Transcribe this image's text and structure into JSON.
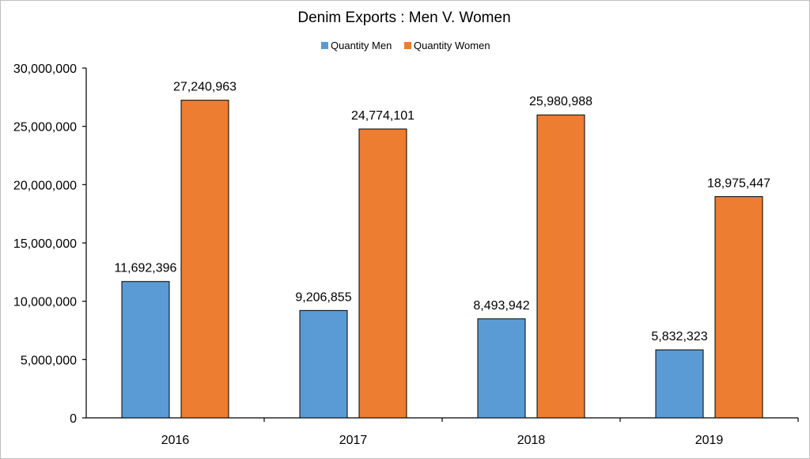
{
  "chart_data": {
    "type": "bar",
    "title": "Denim Exports : Men V. Women",
    "categories": [
      "2016",
      "2017",
      "2018",
      "2019"
    ],
    "series": [
      {
        "name": "Quantity Men",
        "color": "#5b9bd5",
        "values": [
          11692396,
          9206855,
          8493942,
          5832323
        ],
        "labels": [
          "11,692,396",
          "9,206,855",
          "8,493,942",
          "5,832,323"
        ]
      },
      {
        "name": "Quantity Women",
        "color": "#ed7d31",
        "values": [
          27240963,
          24774101,
          25980988,
          18975447
        ],
        "labels": [
          "27,240,963",
          "24,774,101",
          "25,980,988",
          "18,975,447"
        ]
      }
    ],
    "ylim": [
      0,
      30000000
    ],
    "yticks": [
      "0",
      "5,000,000",
      "10,000,000",
      "15,000,000",
      "20,000,000",
      "25,000,000",
      "30,000,000"
    ],
    "legend_position": "top-center",
    "grid": false
  }
}
